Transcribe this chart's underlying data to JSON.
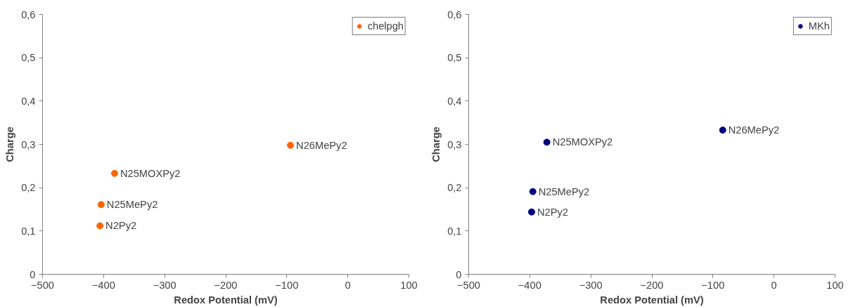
{
  "chart_data": [
    {
      "type": "scatter",
      "xlabel": "Redox Potential (mV)",
      "ylabel": "Charge",
      "xlim": [
        -500,
        100
      ],
      "ylim": [
        0,
        0.6
      ],
      "xticks": [
        -500,
        -400,
        -300,
        -200,
        -100,
        0,
        100
      ],
      "yticks": [
        0,
        {
          "value": 0.1,
          "label": "0,1"
        },
        {
          "value": 0.2,
          "label": "0,2"
        },
        {
          "value": 0.3,
          "label": "0,3"
        },
        {
          "value": 0.4,
          "label": "0,4"
        },
        {
          "value": 0.5,
          "label": "0,5"
        },
        {
          "value": 0.6,
          "label": "0,6"
        }
      ],
      "grid": false,
      "legend": "top right",
      "marker": "circle",
      "series": [
        {
          "name": "chelpgh",
          "color": "#ff6600",
          "x": [
            -406,
            -404,
            -382,
            -94
          ],
          "values": [
            0.112,
            0.161,
            0.233,
            0.298
          ]
        }
      ],
      "annotations": [
        {
          "text": "N2Py2",
          "x": -406,
          "y": 0.112
        },
        {
          "text": "N25MePy2",
          "x": -404,
          "y": 0.161
        },
        {
          "text": "N25MOXPy2",
          "x": -382,
          "y": 0.233
        },
        {
          "text": "N26MePy2",
          "x": -94,
          "y": 0.298
        }
      ]
    },
    {
      "type": "scatter",
      "xlabel": "Redox Potential (mV)",
      "ylabel": "Charge",
      "xlim": [
        -500,
        100
      ],
      "ylim": [
        0,
        0.6
      ],
      "xticks": [
        -500,
        -400,
        -300,
        -200,
        -100,
        0,
        100
      ],
      "yticks": [
        0,
        {
          "value": 0.1,
          "label": "0,1"
        },
        {
          "value": 0.2,
          "label": "0,2"
        },
        {
          "value": 0.3,
          "label": "0,3"
        },
        {
          "value": 0.4,
          "label": "0,4"
        },
        {
          "value": 0.5,
          "label": "0,5"
        },
        {
          "value": 0.6,
          "label": "0,6"
        }
      ],
      "grid": false,
      "legend": "top right",
      "marker": "circle",
      "series": [
        {
          "name": "MKh",
          "color": "#000080",
          "x": [
            -397,
            -395,
            -372,
            -84
          ],
          "values": [
            0.144,
            0.191,
            0.305,
            0.333
          ]
        }
      ],
      "annotations": [
        {
          "text": "N2Py2",
          "x": -397,
          "y": 0.144
        },
        {
          "text": "N25MePy2",
          "x": -395,
          "y": 0.191
        },
        {
          "text": "N25MOXPy2",
          "x": -372,
          "y": 0.305
        },
        {
          "text": "N26MePy2",
          "x": -84,
          "y": 0.333
        }
      ]
    }
  ]
}
